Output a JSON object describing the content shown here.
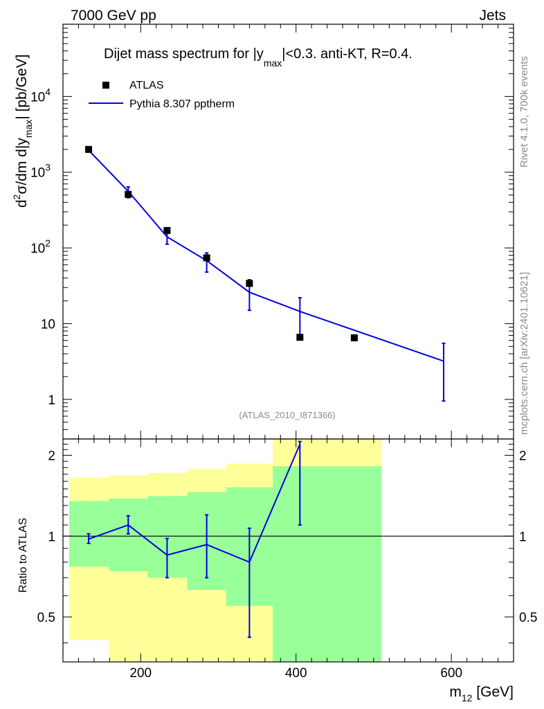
{
  "header": {
    "left": "7000 GeV pp",
    "right": "Jets"
  },
  "side_labels": {
    "top": "Rivet 4.1.0,  700k events",
    "bottom": "mcplots.cern.ch [arXiv:2401.10621]"
  },
  "colors": {
    "mc": "#0000e0",
    "data": "#000000",
    "band_inner": "#99ff99",
    "band_outer": "#ffff99",
    "watermark": "#8a8a8a"
  },
  "chart_data": [
    {
      "type": "scatter",
      "panel": "main",
      "title": "Dijet mass spectrum for |y_max|<0.3.  anti-KT, R=0.4.",
      "title_parts": {
        "pre": "Dijet mass spectrum for |y",
        "sub": "max",
        "post": "|<0.3.  anti-KT, R=0.4."
      },
      "ylabel_parts": {
        "d2": "d",
        "sup2": "2",
        "sigma": "σ/dm d|y",
        "sub": "max",
        "post": "| [pb/GeV]"
      },
      "xlim": [
        100,
        680
      ],
      "ylim_log": [
        0.3,
        90000
      ],
      "yscale": "log",
      "yticks": [
        {
          "value": 1,
          "label": "1"
        },
        {
          "value": 10,
          "label": "10"
        },
        {
          "value": 100,
          "label": "10",
          "sup": "2"
        },
        {
          "value": 1000,
          "label": "10",
          "sup": "3"
        },
        {
          "value": 10000,
          "label": "10",
          "sup": "4"
        }
      ],
      "legend": [
        {
          "name": "ATLAS",
          "marker": "square"
        },
        {
          "name": "Pythia 8.307 pptherm",
          "marker": "line"
        }
      ],
      "analysis_id": "(ATLAS_2010_I871366)",
      "series": [
        {
          "name": "ATLAS",
          "x": [
            133,
            184,
            234,
            285,
            340,
            405,
            475
          ],
          "y": [
            2000,
            510,
            170,
            74,
            34,
            6.6,
            6.5
          ]
        },
        {
          "name": "Pythia 8.307 pptherm",
          "x": [
            133,
            184,
            234,
            285,
            340,
            405,
            590
          ],
          "y": [
            1950,
            560,
            140,
            68,
            26,
            14.5,
            3.2
          ],
          "err_low": [
            1850,
            460,
            112,
            48,
            15,
            6.4,
            0.95
          ],
          "err_high": [
            2050,
            640,
            165,
            86,
            38,
            22,
            5.5
          ]
        }
      ]
    },
    {
      "type": "line",
      "panel": "ratio",
      "ylabel": "Ratio to ATLAS",
      "xlabel": "m_12 [GeV]",
      "xlabel_parts": {
        "pre": "m",
        "sub": "12",
        "post": " [GeV]"
      },
      "xlim": [
        100,
        680
      ],
      "ylim": [
        0.34,
        2.3
      ],
      "yscale": "log",
      "xticks": [
        200,
        400,
        600
      ],
      "yticks": [
        {
          "value": 0.5,
          "label": "0.5"
        },
        {
          "value": 1,
          "label": "1"
        },
        {
          "value": 2,
          "label": "2"
        }
      ],
      "bands": [
        {
          "x0": 108,
          "x1": 159,
          "inner": [
            0.77,
            1.35
          ],
          "outer": [
            0.41,
            1.65
          ]
        },
        {
          "x0": 159,
          "x1": 209,
          "inner": [
            0.74,
            1.38
          ],
          "outer": [
            0.34,
            1.68
          ]
        },
        {
          "x0": 209,
          "x1": 260,
          "inner": [
            0.7,
            1.41
          ],
          "outer": [
            0.34,
            1.72
          ]
        },
        {
          "x0": 260,
          "x1": 310,
          "inner": [
            0.63,
            1.46
          ],
          "outer": [
            0.34,
            1.78
          ]
        },
        {
          "x0": 310,
          "x1": 370,
          "inner": [
            0.55,
            1.52
          ],
          "outer": [
            0.34,
            1.86
          ]
        },
        {
          "x0": 370,
          "x1": 510,
          "inner": [
            0.34,
            1.82
          ],
          "outer": [
            0.34,
            2.3
          ]
        }
      ],
      "series": [
        {
          "name": "Pythia 8.307 pptherm",
          "x": [
            133,
            184,
            234,
            285,
            340,
            405
          ],
          "y": [
            0.975,
            1.1,
            0.85,
            0.93,
            0.8,
            2.2
          ],
          "err_low": [
            0.94,
            1.02,
            0.7,
            0.7,
            0.42,
            1.1
          ],
          "err_high": [
            1.02,
            1.19,
            0.98,
            1.2,
            1.07,
            2.25
          ]
        }
      ]
    }
  ]
}
